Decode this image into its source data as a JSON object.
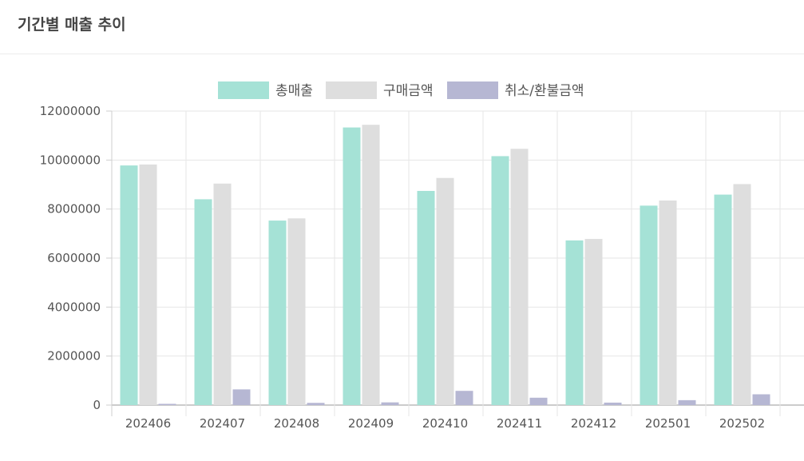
{
  "header": {
    "title": "기간별 매출 추이"
  },
  "chart_data": {
    "type": "bar",
    "title": "",
    "xlabel": "",
    "ylabel": "",
    "categories": [
      "202406",
      "202407",
      "202408",
      "202409",
      "202410",
      "202411",
      "202412",
      "202501",
      "202502"
    ],
    "series": [
      {
        "name": "총매출",
        "color": "#a5e2d6",
        "values": [
          9780000,
          8400000,
          7530000,
          11330000,
          8740000,
          10160000,
          6720000,
          8140000,
          8590000
        ]
      },
      {
        "name": "구매금액",
        "color": "#dedede",
        "values": [
          9820000,
          9040000,
          7620000,
          11440000,
          9270000,
          10460000,
          6780000,
          8350000,
          9020000
        ]
      },
      {
        "name": "취소/환불금액",
        "color": "#b6b7d3",
        "values": [
          50000,
          640000,
          90000,
          110000,
          580000,
          300000,
          100000,
          200000,
          440000
        ]
      }
    ],
    "ylim": [
      0,
      12000000
    ],
    "yticks": [
      0,
      2000000,
      4000000,
      6000000,
      8000000,
      10000000,
      12000000
    ],
    "ytick_labels": [
      "0",
      "2000000",
      "4000000",
      "6000000",
      "8000000",
      "10000000",
      "12000000"
    ],
    "grid": true,
    "legend_position": "top-center"
  }
}
